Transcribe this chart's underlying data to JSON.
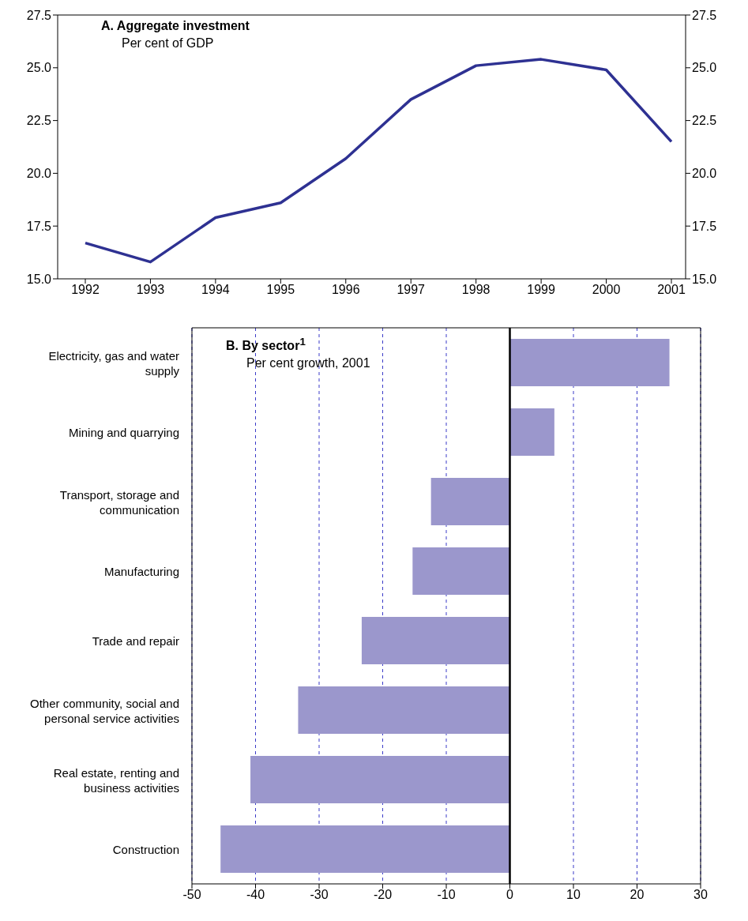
{
  "chart_data": [
    {
      "type": "line",
      "title": "A. Aggregate investment",
      "subtitle": "Per cent of GDP",
      "categories": [
        "1992",
        "1993",
        "1994",
        "1995",
        "1996",
        "1997",
        "1998",
        "1999",
        "2000",
        "2001"
      ],
      "series": [
        {
          "color": "#2e3192",
          "values": [
            16.7,
            15.8,
            17.9,
            18.6,
            20.7,
            23.5,
            25.1,
            25.4,
            24.9,
            21.5
          ]
        }
      ],
      "ylim": [
        15,
        27.5
      ],
      "yticks": [
        {
          "value": 15,
          "label": "15.0"
        },
        {
          "value": 17.5,
          "label": "17.5"
        },
        {
          "value": 20,
          "label": "20.0"
        },
        {
          "value": 22.5,
          "label": "22.5"
        },
        {
          "value": 25,
          "label": "25.0"
        },
        {
          "value": 27.5,
          "label": "27.5"
        }
      ],
      "y2lim": [
        15,
        27.5
      ],
      "y2ticks": [
        {
          "value": 15,
          "label": "15.0"
        },
        {
          "value": 17.5,
          "label": "17.5"
        },
        {
          "value": 20,
          "label": "20.0"
        },
        {
          "value": 22.5,
          "label": "22.5"
        },
        {
          "value": 25,
          "label": "25.0"
        },
        {
          "value": 27.5,
          "label": "27.5"
        }
      ],
      "grid": false,
      "marker": "none",
      "line_style": "solid"
    },
    {
      "type": "bar",
      "orientation": "horizontal",
      "title": "B. By sector$^{1}$",
      "subtitle": "Per cent growth, 2001",
      "categories": [
        "Electricity, gas and water supply",
        "Mining and quarrying",
        "Transport, storage and communication",
        "Manufacturing",
        "Trade and repair",
        "Other community, social and personal service activities",
        "Real estate, renting and business activities",
        "Construction"
      ],
      "values": [
        25.1,
        7.0,
        -12.4,
        -15.3,
        -23.3,
        -33.3,
        -40.8,
        -45.5
      ],
      "color": "#9b97cc",
      "xlim": [
        -50,
        30
      ],
      "xticks": [
        -50,
        -40,
        -30,
        -20,
        -10,
        0,
        10,
        20,
        30
      ],
      "grid": "x",
      "ref_lines": [
        {
          "axis": "x",
          "value": 0,
          "color": "#000000",
          "line_style": "solid"
        }
      ]
    }
  ]
}
